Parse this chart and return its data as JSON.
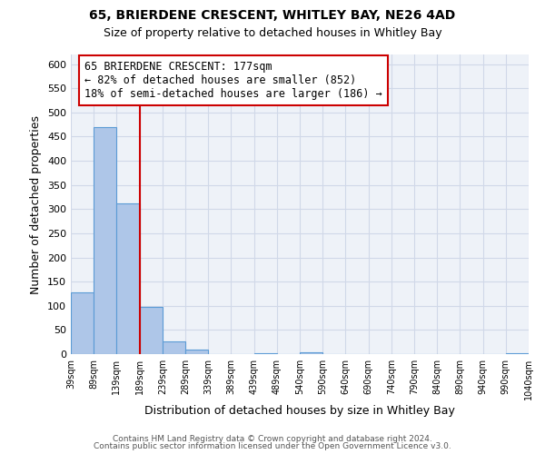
{
  "title": "65, BRIERDENE CRESCENT, WHITLEY BAY, NE26 4AD",
  "subtitle": "Size of property relative to detached houses in Whitley Bay",
  "xlabel": "Distribution of detached houses by size in Whitley Bay",
  "ylabel": "Number of detached properties",
  "bar_color": "#aec6e8",
  "bar_edge_color": "#5b9bd5",
  "grid_color": "#d0d8e8",
  "background_color": "#ffffff",
  "plot_bg_color": "#eef2f8",
  "bins": [
    "39sqm",
    "89sqm",
    "139sqm",
    "189sqm",
    "239sqm",
    "289sqm",
    "339sqm",
    "389sqm",
    "439sqm",
    "489sqm",
    "540sqm",
    "590sqm",
    "640sqm",
    "690sqm",
    "740sqm",
    "790sqm",
    "840sqm",
    "890sqm",
    "940sqm",
    "990sqm",
    "1040sqm"
  ],
  "values": [
    128,
    470,
    312,
    97,
    27,
    10,
    0,
    0,
    2,
    0,
    3,
    0,
    0,
    0,
    0,
    0,
    0,
    0,
    0,
    2
  ],
  "ylim": [
    0,
    620
  ],
  "yticks": [
    0,
    50,
    100,
    150,
    200,
    250,
    300,
    350,
    400,
    450,
    500,
    550,
    600
  ],
  "vline_x": 3.0,
  "vline_color": "#cc0000",
  "annotation_text": "65 BRIERDENE CRESCENT: 177sqm\n← 82% of detached houses are smaller (852)\n18% of semi-detached houses are larger (186) →",
  "annotation_box_color": "#ffffff",
  "annotation_box_edge": "#cc0000",
  "footer_line1": "Contains HM Land Registry data © Crown copyright and database right 2024.",
  "footer_line2": "Contains public sector information licensed under the Open Government Licence v3.0."
}
